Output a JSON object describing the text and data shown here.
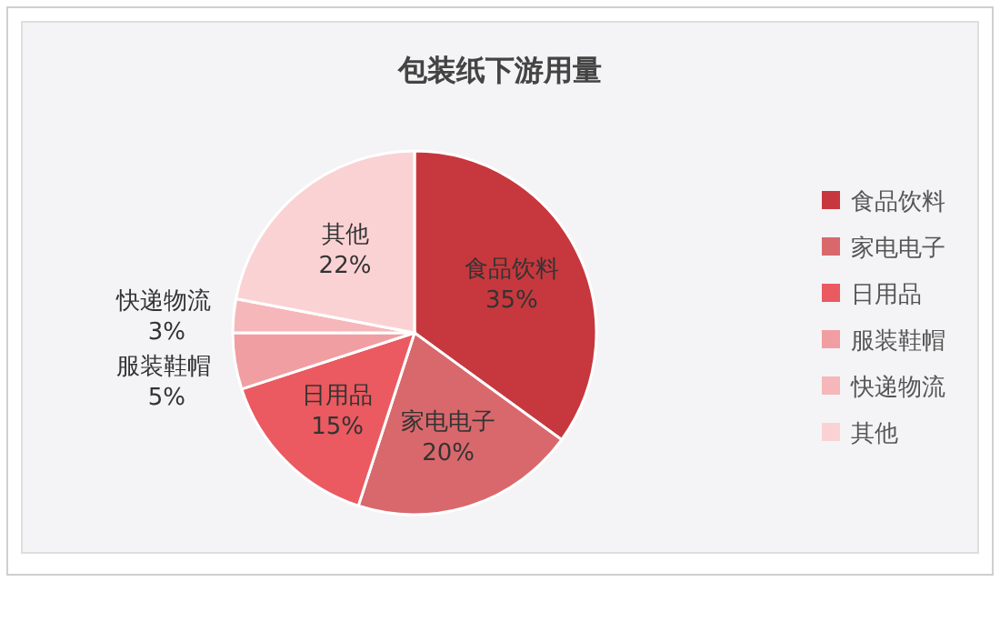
{
  "chart_data": {
    "type": "pie",
    "title": "包装纸下游用量",
    "categories": [
      "食品饮料",
      "家电电子",
      "日用品",
      "服装鞋帽",
      "快递物流",
      "其他"
    ],
    "values": [
      35,
      20,
      15,
      5,
      3,
      22
    ],
    "value_labels": [
      "35%",
      "20%",
      "15%",
      "5%",
      "3%",
      "22%"
    ],
    "colors": [
      "#c6383d",
      "#d9686c",
      "#ea5a60",
      "#f19ea2",
      "#f6b7ba",
      "#fbd2d4"
    ],
    "legend": "right"
  }
}
